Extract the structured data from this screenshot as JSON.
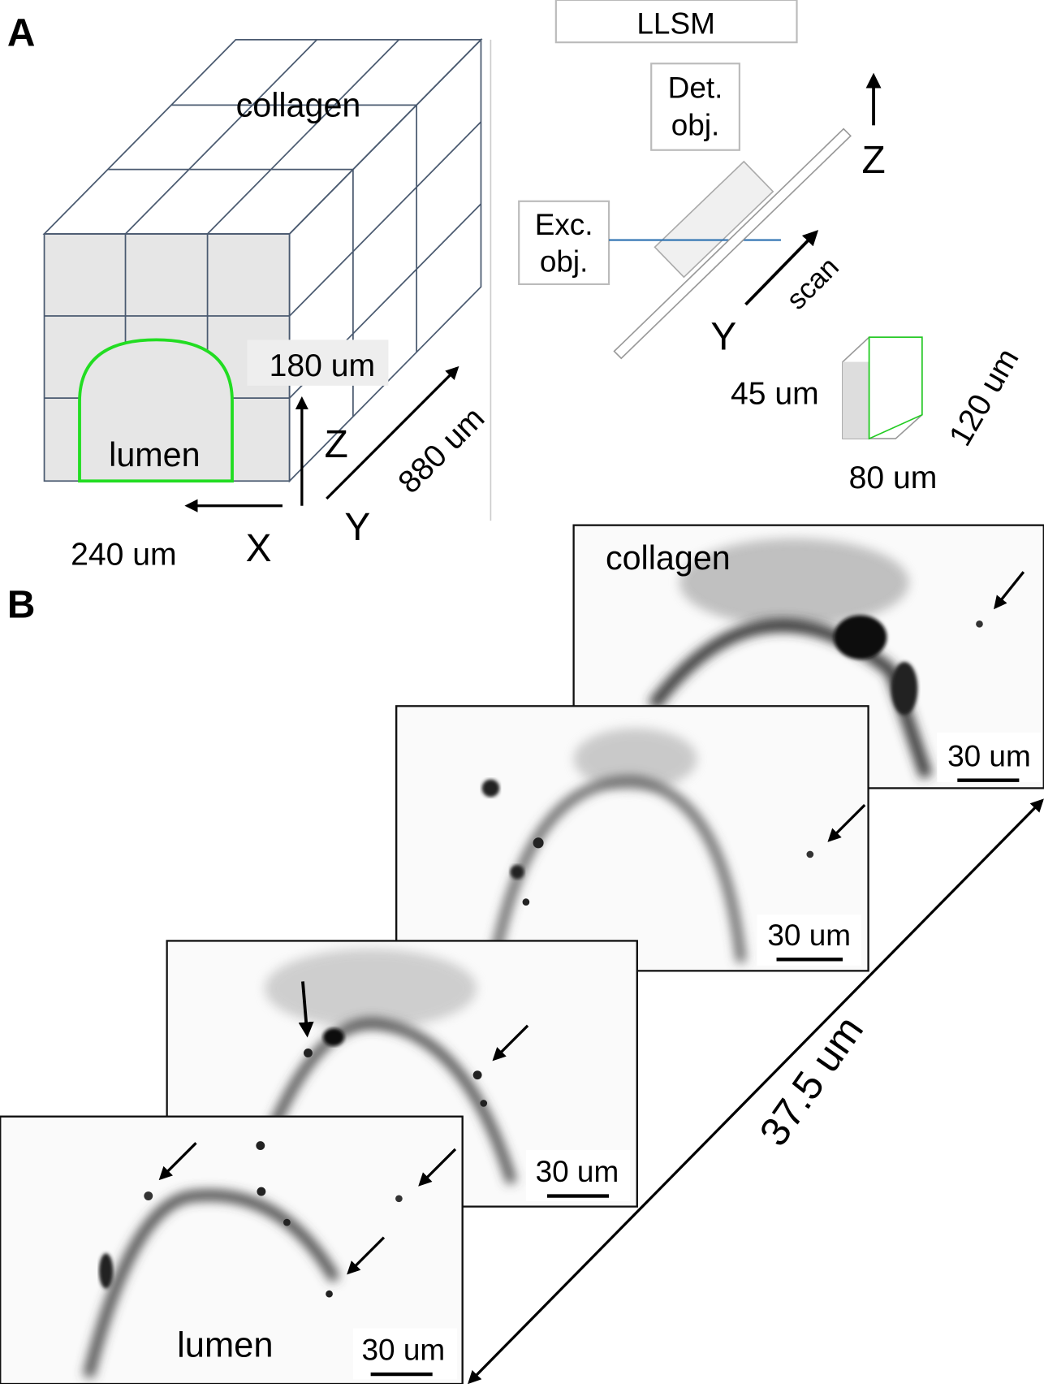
{
  "panel_a": {
    "label": "A",
    "block": {
      "top_label": "collagen",
      "lumen_label": "lumen",
      "z_size": "180 um",
      "z_axis": "Z",
      "y_size": "880 um",
      "y_axis": "Y",
      "x_size": "240 um",
      "x_axis": "X"
    },
    "microscope": {
      "title": "LLSM",
      "detection": [
        "Det.",
        "obj."
      ],
      "excitation": [
        "Exc.",
        "obj."
      ],
      "z_axis": "Z",
      "scan": "scan",
      "y_axis": "Y",
      "volume": {
        "height": "45 um",
        "depth": "120 um",
        "width": "80 um"
      }
    }
  },
  "panel_b": {
    "label": "B",
    "top_label": "collagen",
    "bottom_label": "lumen",
    "scale_bars": [
      "30 um",
      "30 um",
      "30 um",
      "30 um"
    ],
    "stack_depth": "37.5 um"
  }
}
